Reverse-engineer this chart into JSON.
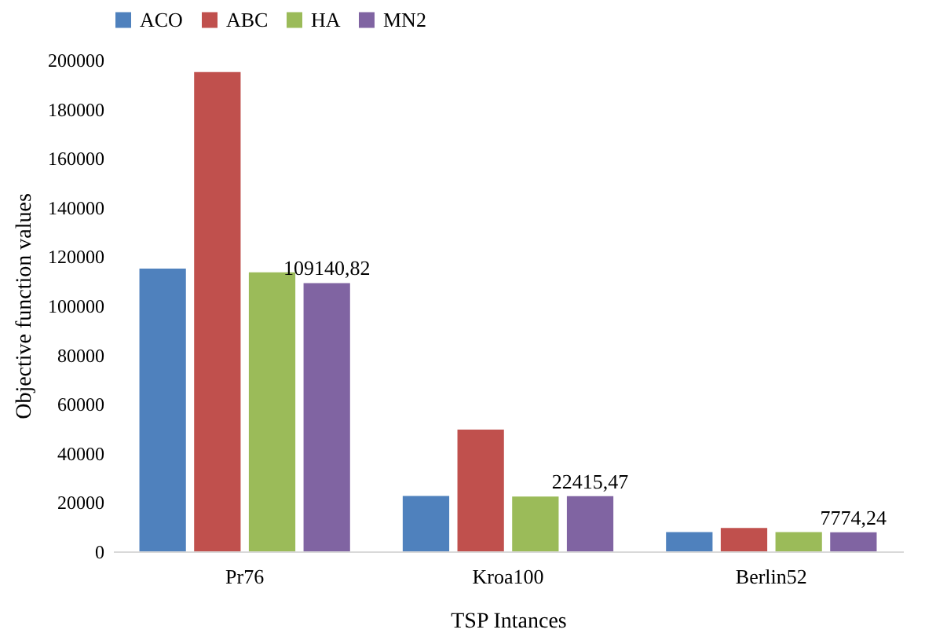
{
  "chart_data": {
    "type": "bar",
    "xlabel": "TSP Intances",
    "ylabel": "Objective function values",
    "categories": [
      "Pr76",
      "Kroa100",
      "Berlin52"
    ],
    "series": [
      {
        "name": "ACO",
        "color": "#4f81bd",
        "values": [
          115000,
          22500,
          7800
        ]
      },
      {
        "name": "ABC",
        "color": "#c0504d",
        "values": [
          195000,
          49500,
          9500
        ]
      },
      {
        "name": "HA",
        "color": "#9bbb59",
        "values": [
          113500,
          22300,
          7800
        ]
      },
      {
        "name": "MN2",
        "color": "#8064a2",
        "values": [
          109140.82,
          22415.47,
          7774.24
        ],
        "value_labels": [
          "109140,82",
          "22415,47",
          "7774,24"
        ]
      }
    ],
    "ylim": [
      0,
      200000
    ],
    "yticks": [
      0,
      20000,
      40000,
      60000,
      80000,
      100000,
      120000,
      140000,
      160000,
      180000,
      200000
    ],
    "grid": false,
    "legend": "top"
  }
}
